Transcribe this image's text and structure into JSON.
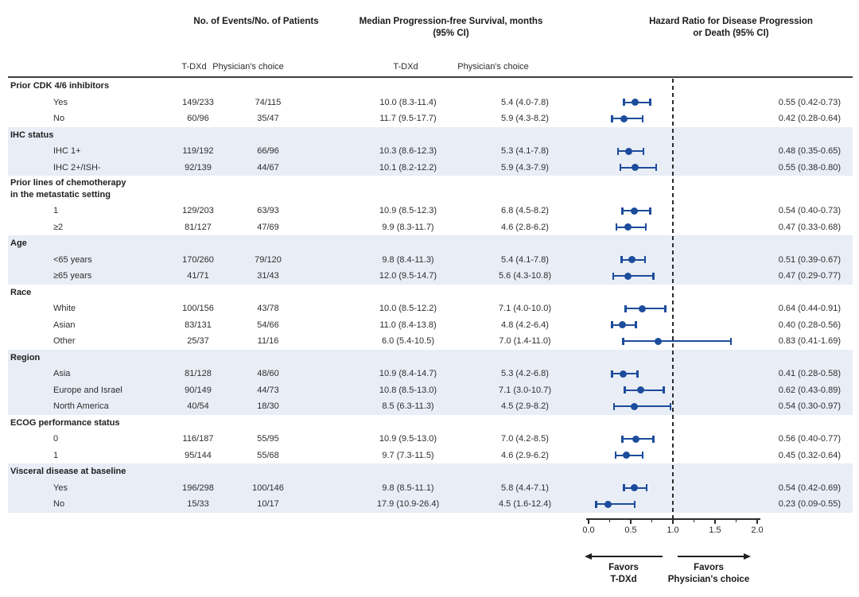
{
  "header": {
    "col_events": "No. of Events/No. of Patients",
    "col_pfs_line1": "Median Progression-free Survival, months",
    "col_pfs_line2": "(95% CI)",
    "col_hr_line1": "Hazard Ratio for Disease Progression",
    "col_hr_line2": "or Death (95% CI)",
    "subheaders": [
      "T-DXd",
      "Physician's choice",
      "T-DXd",
      "Physician's choice"
    ]
  },
  "footer": {
    "favors_left": [
      "Favors",
      "T-DXd"
    ],
    "favors_right": [
      "Favors",
      "Physician's choice"
    ]
  },
  "colors": {
    "marker_blue": "#1c4c9c",
    "group_shading": "#e9edf6",
    "axis_black": "#2b2b2b"
  },
  "chart_data": {
    "type": "forest",
    "x_axis": {
      "range": [
        0.0,
        2.0
      ],
      "major_ticks": [
        0.0,
        0.5,
        1.0,
        1.5,
        2.0
      ],
      "major_tick_labels": [
        "0.0",
        "0.5",
        "1.0",
        "1.5",
        "2.0"
      ],
      "minor_ticks": [
        0.25,
        0.75,
        1.25,
        1.75
      ],
      "reference_line": 1.0
    },
    "columns": [
      "Subgroup",
      "No. of Events/No. of Patients T-DXd",
      "No. of Events/No. of Patients Physician's choice",
      "Median PFS T-DXd",
      "Median PFS Physician's choice",
      "Hazard Ratio (95% CI)"
    ],
    "groups": [
      {
        "label_lines": [
          "Prior CDK 4/6 inhibitors"
        ],
        "shaded": false,
        "rows": [
          {
            "label": "Yes",
            "events_tdxd": "149/233",
            "events_pc": "74/115",
            "pfs_tdxd": "10.0 (8.3-11.4)",
            "pfs_pc": "5.4 (4.0-7.8)",
            "hr": 0.55,
            "lo": 0.42,
            "hi": 0.73,
            "hr_text": "0.55 (0.42-0.73)"
          },
          {
            "label": "No",
            "events_tdxd": "60/96",
            "events_pc": "35/47",
            "pfs_tdxd": "11.7 (9.5-17.7)",
            "pfs_pc": "5.9 (4.3-8.2)",
            "hr": 0.42,
            "lo": 0.28,
            "hi": 0.64,
            "hr_text": "0.42 (0.28-0.64)"
          }
        ]
      },
      {
        "label_lines": [
          "IHC status"
        ],
        "shaded": true,
        "rows": [
          {
            "label": "IHC 1+",
            "events_tdxd": "119/192",
            "events_pc": "66/96",
            "pfs_tdxd": "10.3 (8.6-12.3)",
            "pfs_pc": "5.3 (4.1-7.8)",
            "hr": 0.48,
            "lo": 0.35,
            "hi": 0.65,
            "hr_text": "0.48 (0.35-0.65)"
          },
          {
            "label": "IHC 2+/ISH-",
            "events_tdxd": "92/139",
            "events_pc": "44/67",
            "pfs_tdxd": "10.1 (8.2-12.2)",
            "pfs_pc": "5.9 (4.3-7.9)",
            "hr": 0.55,
            "lo": 0.38,
            "hi": 0.8,
            "hr_text": "0.55 (0.38-0.80)"
          }
        ]
      },
      {
        "label_lines": [
          "Prior lines of chemotherapy",
          "in the metastatic setting"
        ],
        "shaded": false,
        "rows": [
          {
            "label": "1",
            "events_tdxd": "129/203",
            "events_pc": "63/93",
            "pfs_tdxd": "10.9 (8.5-12.3)",
            "pfs_pc": "6.8 (4.5-8.2)",
            "hr": 0.54,
            "lo": 0.4,
            "hi": 0.73,
            "hr_text": "0.54 (0.40-0.73)"
          },
          {
            "label": "≥2",
            "events_tdxd": "81/127",
            "events_pc": "47/69",
            "pfs_tdxd": "9.9 (8.3-11.7)",
            "pfs_pc": "4.6 (2.8-6.2)",
            "hr": 0.47,
            "lo": 0.33,
            "hi": 0.68,
            "hr_text": "0.47 (0.33-0.68)"
          }
        ]
      },
      {
        "label_lines": [
          "Age"
        ],
        "shaded": true,
        "rows": [
          {
            "label": "<65 years",
            "events_tdxd": "170/260",
            "events_pc": "79/120",
            "pfs_tdxd": "9.8 (8.4-11.3)",
            "pfs_pc": "5.4 (4.1-7.8)",
            "hr": 0.51,
            "lo": 0.39,
            "hi": 0.67,
            "hr_text": "0.51 (0.39-0.67)"
          },
          {
            "label": "≥65 years",
            "events_tdxd": "41/71",
            "events_pc": "31/43",
            "pfs_tdxd": "12.0 (9.5-14.7)",
            "pfs_pc": "5.6 (4.3-10.8)",
            "hr": 0.47,
            "lo": 0.29,
            "hi": 0.77,
            "hr_text": "0.47 (0.29-0.77)"
          }
        ]
      },
      {
        "label_lines": [
          "Race"
        ],
        "shaded": false,
        "rows": [
          {
            "label": "White",
            "events_tdxd": "100/156",
            "events_pc": "43/78",
            "pfs_tdxd": "10.0 (8.5-12.2)",
            "pfs_pc": "7.1 (4.0-10.0)",
            "hr": 0.64,
            "lo": 0.44,
            "hi": 0.91,
            "hr_text": "0.64 (0.44-0.91)"
          },
          {
            "label": "Asian",
            "events_tdxd": "83/131",
            "events_pc": "54/66",
            "pfs_tdxd": "11.0 (8.4-13.8)",
            "pfs_pc": "4.8 (4.2-6.4)",
            "hr": 0.4,
            "lo": 0.28,
            "hi": 0.56,
            "hr_text": "0.40 (0.28-0.56)"
          },
          {
            "label": "Other",
            "events_tdxd": "25/37",
            "events_pc": "11/16",
            "pfs_tdxd": "6.0 (5.4-10.5)",
            "pfs_pc": "7.0 (1.4-11.0)",
            "hr": 0.83,
            "lo": 0.41,
            "hi": 1.69,
            "hr_text": "0.83 (0.41-1.69)"
          }
        ]
      },
      {
        "label_lines": [
          "Region"
        ],
        "shaded": true,
        "rows": [
          {
            "label": "Asia",
            "events_tdxd": "81/128",
            "events_pc": "48/60",
            "pfs_tdxd": "10.9 (8.4-14.7)",
            "pfs_pc": "5.3 (4.2-6.8)",
            "hr": 0.41,
            "lo": 0.28,
            "hi": 0.58,
            "hr_text": "0.41 (0.28-0.58)"
          },
          {
            "label": "Europe and Israel",
            "events_tdxd": "90/149",
            "events_pc": "44/73",
            "pfs_tdxd": "10.8 (8.5-13.0)",
            "pfs_pc": "7.1 (3.0-10.7)",
            "hr": 0.62,
            "lo": 0.43,
            "hi": 0.89,
            "hr_text": "0.62 (0.43-0.89)"
          },
          {
            "label": "North America",
            "events_tdxd": "40/54",
            "events_pc": "18/30",
            "pfs_tdxd": "8.5 (6.3-11.3)",
            "pfs_pc": "4.5 (2.9-8.2)",
            "hr": 0.54,
            "lo": 0.3,
            "hi": 0.97,
            "hr_text": "0.54 (0.30-0.97)"
          }
        ]
      },
      {
        "label_lines": [
          "ECOG performance status"
        ],
        "shaded": false,
        "rows": [
          {
            "label": "0",
            "events_tdxd": "116/187",
            "events_pc": "55/95",
            "pfs_tdxd": "10.9 (9.5-13.0)",
            "pfs_pc": "7.0 (4.2-8.5)",
            "hr": 0.56,
            "lo": 0.4,
            "hi": 0.77,
            "hr_text": "0.56 (0.40-0.77)"
          },
          {
            "label": "1",
            "events_tdxd": "95/144",
            "events_pc": "55/68",
            "pfs_tdxd": "9.7 (7.3-11.5)",
            "pfs_pc": "4.6 (2.9-6.2)",
            "hr": 0.45,
            "lo": 0.32,
            "hi": 0.64,
            "hr_text": "0.45 (0.32-0.64)"
          }
        ]
      },
      {
        "label_lines": [
          "Visceral disease at baseline"
        ],
        "shaded": true,
        "rows": [
          {
            "label": "Yes",
            "events_tdxd": "196/298",
            "events_pc": "100/146",
            "pfs_tdxd": "9.8 (8.5-11.1)",
            "pfs_pc": "5.8 (4.4-7.1)",
            "hr": 0.54,
            "lo": 0.42,
            "hi": 0.69,
            "hr_text": "0.54 (0.42-0.69)"
          },
          {
            "label": "No",
            "events_tdxd": "15/33",
            "events_pc": "10/17",
            "pfs_tdxd": "17.9 (10.9-26.4)",
            "pfs_pc": "4.5 (1.6-12.4)",
            "hr": 0.23,
            "lo": 0.09,
            "hi": 0.55,
            "hr_text": "0.23 (0.09-0.55)"
          }
        ]
      }
    ]
  }
}
